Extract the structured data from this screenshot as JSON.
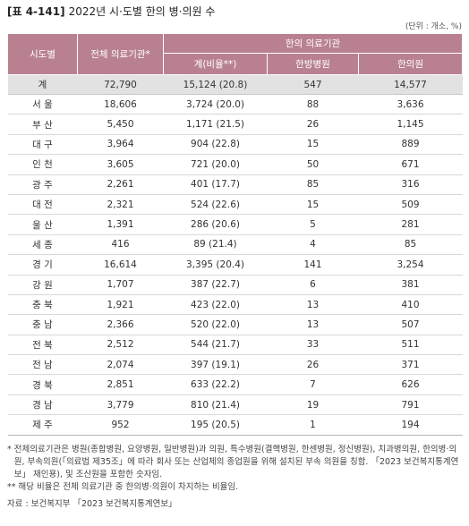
{
  "title": {
    "number": "[표 4-141]",
    "text": "2022년 시·도별 한의 병·의원 수"
  },
  "unit": "(단위 : 개소, %)",
  "table": {
    "header": {
      "region": "시도별",
      "total_institutions": "전체 의료기관*",
      "korean_medicine_group": "한의 의료기관",
      "km_total": "계(비율**)",
      "km_hospitals": "한방병원",
      "km_clinics": "한의원"
    },
    "total_row": {
      "region": "계",
      "total_institutions": "72,790",
      "km_total": "15,124 (20.8)",
      "km_hospitals": "547",
      "km_clinics": "14,577"
    },
    "rows": [
      {
        "region": "서 울",
        "total_institutions": "18,606",
        "km_total": "3,724 (20.0)",
        "km_hospitals": "88",
        "km_clinics": "3,636"
      },
      {
        "region": "부 산",
        "total_institutions": "5,450",
        "km_total": "1,171 (21.5)",
        "km_hospitals": "26",
        "km_clinics": "1,145"
      },
      {
        "region": "대 구",
        "total_institutions": "3,964",
        "km_total": "904 (22.8)",
        "km_hospitals": "15",
        "km_clinics": "889"
      },
      {
        "region": "인 천",
        "total_institutions": "3,605",
        "km_total": "721 (20.0)",
        "km_hospitals": "50",
        "km_clinics": "671"
      },
      {
        "region": "광 주",
        "total_institutions": "2,261",
        "km_total": "401 (17.7)",
        "km_hospitals": "85",
        "km_clinics": "316"
      },
      {
        "region": "대 전",
        "total_institutions": "2,321",
        "km_total": "524 (22.6)",
        "km_hospitals": "15",
        "km_clinics": "509"
      },
      {
        "region": "울 산",
        "total_institutions": "1,391",
        "km_total": "286 (20.6)",
        "km_hospitals": "5",
        "km_clinics": "281"
      },
      {
        "region": "세 종",
        "total_institutions": "416",
        "km_total": "89 (21.4)",
        "km_hospitals": "4",
        "km_clinics": "85"
      },
      {
        "region": "경 기",
        "total_institutions": "16,614",
        "km_total": "3,395 (20.4)",
        "km_hospitals": "141",
        "km_clinics": "3,254"
      },
      {
        "region": "강 원",
        "total_institutions": "1,707",
        "km_total": "387 (22.7)",
        "km_hospitals": "6",
        "km_clinics": "381"
      },
      {
        "region": "충 북",
        "total_institutions": "1,921",
        "km_total": "423 (22.0)",
        "km_hospitals": "13",
        "km_clinics": "410"
      },
      {
        "region": "충 남",
        "total_institutions": "2,366",
        "km_total": "520 (22.0)",
        "km_hospitals": "13",
        "km_clinics": "507"
      },
      {
        "region": "전 북",
        "total_institutions": "2,512",
        "km_total": "544 (21.7)",
        "km_hospitals": "33",
        "km_clinics": "511"
      },
      {
        "region": "전 남",
        "total_institutions": "2,074",
        "km_total": "397 (19.1)",
        "km_hospitals": "26",
        "km_clinics": "371"
      },
      {
        "region": "경 북",
        "total_institutions": "2,851",
        "km_total": "633 (22.2)",
        "km_hospitals": "7",
        "km_clinics": "626"
      },
      {
        "region": "경 남",
        "total_institutions": "3,779",
        "km_total": "810 (21.4)",
        "km_hospitals": "19",
        "km_clinics": "791"
      },
      {
        "region": "제 주",
        "total_institutions": "952",
        "km_total": "195 (20.5)",
        "km_hospitals": "1",
        "km_clinics": "194"
      }
    ]
  },
  "notes": [
    {
      "mark": "*",
      "text": "전체의료기관은 병원(종합병원, 요양병원, 일반병원)과 의원, 특수병원(결핵병원, 한센병원, 정신병원), 치과병의원, 한의병·의원, 부속의원(「의료법 제35조」에 따라 회사 또는 산업체의 종업원을 위해 설치된 부속 의원을 칭함. 「2023 보건복지통계연보」 재인용), 및 조산원을 포함한 숫자임."
    },
    {
      "mark": "**",
      "text": "해당 비율은 전체 의료기관 중 한의병·의원이 차지하는 비율임."
    }
  ],
  "source": "자료 : 보건복지부 「2023 보건복지통계연보」",
  "colors": {
    "header_bg": "#b98190",
    "header_text": "#ffffff",
    "total_row_bg": "#e2e2e2",
    "body_text": "#333333"
  }
}
